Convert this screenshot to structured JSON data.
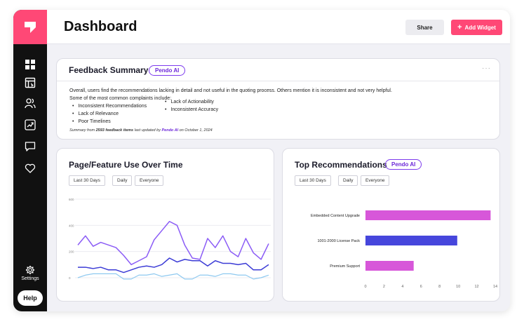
{
  "header": {
    "title": "Dashboard",
    "share_label": "Share",
    "add_widget_label": "Add Widget"
  },
  "sidebar": {
    "items": [
      {
        "icon": "dashboard-grid-icon"
      },
      {
        "icon": "guide-icon"
      },
      {
        "icon": "people-icon"
      },
      {
        "icon": "trend-chart-icon"
      },
      {
        "icon": "chat-bubble-icon"
      },
      {
        "icon": "heart-icon"
      }
    ],
    "settings_label": "Settings",
    "help_label": "Help"
  },
  "feedback": {
    "title": "Feedback Summary",
    "badge": "Pendo AI",
    "intro": "Overall, users find the recommendations lacking in detail and not useful in the quoting process. Others mention it is inconsistent and not very helpful.",
    "complaints_intro": "Some of the most common complaints include:",
    "complaints_col1": [
      "Inconsistent Recommendations",
      "Lack of Relevance",
      "Poor Timelines"
    ],
    "complaints_col2": [
      "Lack of Actionability",
      "Inconsistent Accuracy"
    ],
    "summary_prefix": "Summary from",
    "summary_count": "2593 feedback items",
    "summary_mid": "last updated by",
    "summary_by": "Pendo AI",
    "summary_date": "on October 1, 2024"
  },
  "usage": {
    "title": "Page/Feature Use Over Time",
    "filters": [
      "Last 30 Days",
      "Daily",
      "Everyone"
    ]
  },
  "recommendations": {
    "title": "Top Recommendations",
    "badge": "Pendo AI",
    "filters": [
      "Last 30 Days",
      "Daily",
      "Everyone"
    ]
  },
  "colors": {
    "brand": "#ff4876",
    "ai_purple": "#6d28d9",
    "series_purple": "#8b5cf6",
    "series_indigo": "#3b3bd6",
    "series_lightblue": "#8ec9f0",
    "bar_magenta": "#d757d9",
    "bar_indigo": "#4646dc"
  },
  "chart_data": [
    {
      "type": "line",
      "title": "Page/Feature Use Over Time",
      "yticks": [
        "0",
        "200",
        "400",
        "600"
      ],
      "ylim": [
        0,
        600
      ],
      "x": [
        1,
        2,
        3,
        4,
        5,
        6,
        7,
        8,
        9,
        10,
        11,
        12,
        13,
        14,
        15,
        16,
        17,
        18,
        19,
        20,
        21,
        22,
        23,
        24,
        25,
        26
      ],
      "series": [
        {
          "values": [
            250,
            320,
            240,
            270,
            250,
            230,
            170,
            100,
            130,
            160,
            290,
            360,
            430,
            400,
            250,
            150,
            140,
            300,
            230,
            320,
            200,
            160,
            300,
            190,
            140,
            260
          ]
        },
        {
          "values": [
            80,
            80,
            70,
            80,
            60,
            60,
            40,
            60,
            80,
            90,
            80,
            100,
            150,
            120,
            140,
            130,
            130,
            90,
            130,
            110,
            110,
            100,
            110,
            60,
            60,
            100
          ]
        },
        {
          "values": [
            0,
            20,
            30,
            30,
            30,
            30,
            -10,
            -10,
            20,
            20,
            30,
            10,
            20,
            30,
            -10,
            -10,
            20,
            20,
            10,
            30,
            30,
            20,
            20,
            -10,
            0,
            20
          ]
        }
      ]
    },
    {
      "type": "bar",
      "title": "Top Recommendations",
      "orientation": "horizontal",
      "categories": [
        "Embedded Content Upgrade",
        "1001-2000 License Pack",
        "Premium Support"
      ],
      "values": [
        13.5,
        9.9,
        5.2
      ],
      "xticks": [
        "0",
        "2",
        "4",
        "6",
        "8",
        "10",
        "12",
        "14"
      ],
      "xlim": [
        0,
        14
      ]
    }
  ]
}
